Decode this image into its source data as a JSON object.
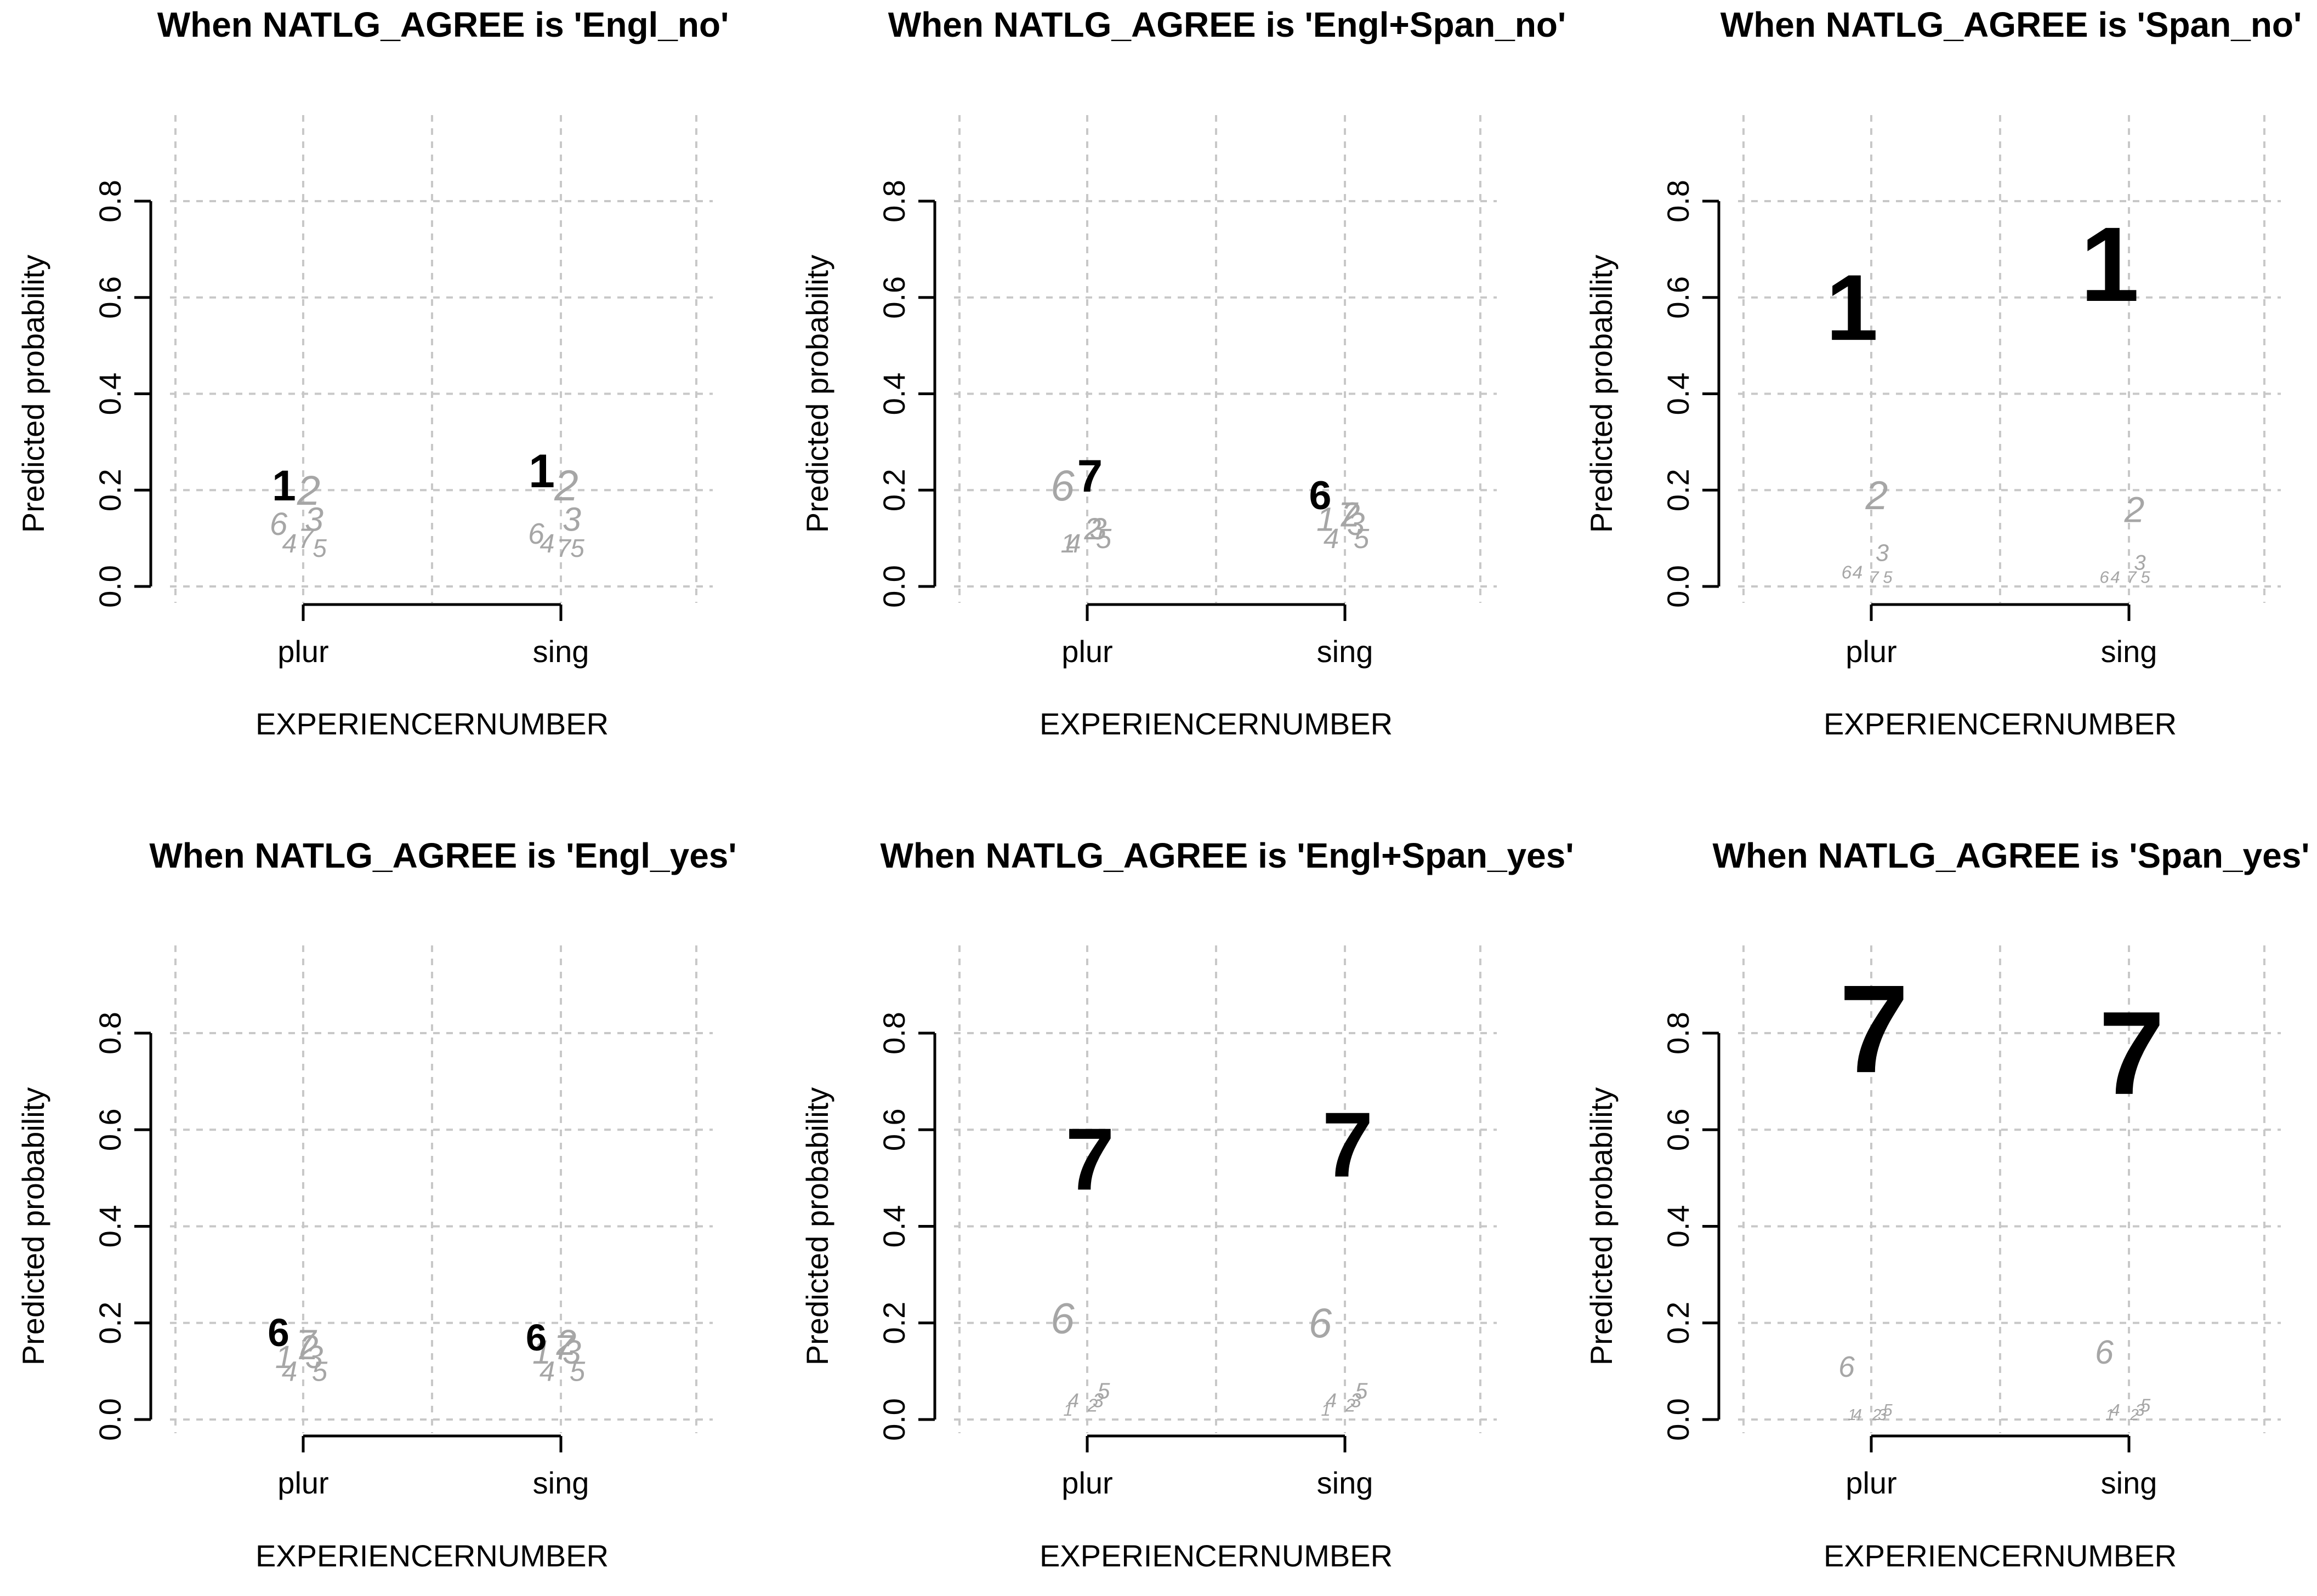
{
  "figure": {
    "panel_order": [
      "Engl_no",
      "Engl+Span_no",
      "Span_no",
      "Engl_yes",
      "Engl+Span_yes",
      "Span_yes"
    ],
    "highlight_color": "#000000",
    "muted_color": "#a6a6a6",
    "grid_color": "#c8c8c8"
  },
  "chart_data": [
    {
      "type": "scatter",
      "title": "When NATLG_AGREE is 'Engl_no'",
      "xlabel": "EXPERIENCERNUMBER",
      "ylabel": "Predicted probability",
      "categories": [
        "plur",
        "sing"
      ],
      "ylim": [
        0,
        0.8
      ],
      "yticks": [
        "0.0",
        "0.2",
        "0.4",
        "0.6",
        "0.8"
      ],
      "grid": true,
      "series": [
        {
          "name": "1",
          "values": [
            0.21,
            0.24
          ],
          "highlight": true
        },
        {
          "name": "2",
          "values": [
            0.2,
            0.21
          ]
        },
        {
          "name": "3",
          "values": [
            0.14,
            0.14
          ]
        },
        {
          "name": "4",
          "values": [
            0.09,
            0.09
          ]
        },
        {
          "name": "5",
          "values": [
            0.08,
            0.08
          ]
        },
        {
          "name": "6",
          "values": [
            0.13,
            0.11
          ]
        },
        {
          "name": "7",
          "values": [
            0.1,
            0.08
          ]
        }
      ]
    },
    {
      "type": "scatter",
      "title": "When NATLG_AGREE is 'Engl+Span_no'",
      "xlabel": "EXPERIENCERNUMBER",
      "ylabel": "Predicted probability",
      "categories": [
        "plur",
        "sing"
      ],
      "ylim": [
        0,
        0.8
      ],
      "yticks": [
        "0.0",
        "0.2",
        "0.4",
        "0.6",
        "0.8"
      ],
      "grid": true,
      "series": [
        {
          "name": "1",
          "values": [
            0.09,
            0.14
          ]
        },
        {
          "name": "2",
          "values": [
            0.12,
            0.15
          ]
        },
        {
          "name": "3",
          "values": [
            0.12,
            0.13
          ]
        },
        {
          "name": "4",
          "values": [
            0.09,
            0.1
          ]
        },
        {
          "name": "5",
          "values": [
            0.1,
            0.1
          ]
        },
        {
          "name": "6",
          "values": [
            0.21,
            0.19
          ],
          "highlight_sing": true
        },
        {
          "name": "7",
          "values": [
            0.23,
            0.15
          ],
          "highlight_plur": true
        }
      ]
    },
    {
      "type": "scatter",
      "title": "When NATLG_AGREE is 'Span_no'",
      "xlabel": "EXPERIENCERNUMBER",
      "ylabel": "Predicted probability",
      "categories": [
        "plur",
        "sing"
      ],
      "ylim": [
        0,
        0.8
      ],
      "yticks": [
        "0.0",
        "0.2",
        "0.4",
        "0.6",
        "0.8"
      ],
      "grid": true,
      "series": [
        {
          "name": "1",
          "values": [
            0.58,
            0.67
          ],
          "highlight": true
        },
        {
          "name": "2",
          "values": [
            0.19,
            0.16
          ]
        },
        {
          "name": "3",
          "values": [
            0.07,
            0.05
          ]
        },
        {
          "name": "4",
          "values": [
            0.03,
            0.02
          ]
        },
        {
          "name": "5",
          "values": [
            0.02,
            0.02
          ]
        },
        {
          "name": "6",
          "values": [
            0.03,
            0.02
          ]
        },
        {
          "name": "7",
          "values": [
            0.02,
            0.02
          ]
        }
      ]
    },
    {
      "type": "scatter",
      "title": "When NATLG_AGREE is 'Engl_yes'",
      "xlabel": "EXPERIENCERNUMBER",
      "ylabel": "Predicted probability",
      "categories": [
        "plur",
        "sing"
      ],
      "ylim": [
        0,
        0.8
      ],
      "yticks": [
        "0.0",
        "0.2",
        "0.4",
        "0.6",
        "0.8"
      ],
      "grid": true,
      "series": [
        {
          "name": "1",
          "values": [
            0.13,
            0.14
          ]
        },
        {
          "name": "2",
          "values": [
            0.15,
            0.16
          ]
        },
        {
          "name": "3",
          "values": [
            0.13,
            0.14
          ]
        },
        {
          "name": "4",
          "values": [
            0.1,
            0.1
          ]
        },
        {
          "name": "5",
          "values": [
            0.1,
            0.1
          ]
        },
        {
          "name": "6",
          "values": [
            0.18,
            0.17
          ],
          "highlight": true
        },
        {
          "name": "7",
          "values": [
            0.16,
            0.15
          ]
        }
      ]
    },
    {
      "type": "scatter",
      "title": "When NATLG_AGREE is 'Engl+Span_yes'",
      "xlabel": "EXPERIENCERNUMBER",
      "ylabel": "Predicted probability",
      "categories": [
        "plur",
        "sing"
      ],
      "ylim": [
        0,
        0.8
      ],
      "yticks": [
        "0.0",
        "0.2",
        "0.4",
        "0.6",
        "0.8"
      ],
      "grid": true,
      "series": [
        {
          "name": "1",
          "values": [
            0.02,
            0.02
          ]
        },
        {
          "name": "2",
          "values": [
            0.03,
            0.03
          ]
        },
        {
          "name": "3",
          "values": [
            0.04,
            0.04
          ]
        },
        {
          "name": "4",
          "values": [
            0.04,
            0.04
          ]
        },
        {
          "name": "5",
          "values": [
            0.06,
            0.06
          ]
        },
        {
          "name": "6",
          "values": [
            0.21,
            0.2
          ]
        },
        {
          "name": "7",
          "values": [
            0.54,
            0.57
          ],
          "highlight": true
        }
      ]
    },
    {
      "type": "scatter",
      "title": "When NATLG_AGREE is 'Span_yes'",
      "xlabel": "EXPERIENCERNUMBER",
      "ylabel": "Predicted probability",
      "categories": [
        "plur",
        "sing"
      ],
      "ylim": [
        0,
        0.8
      ],
      "yticks": [
        "0.0",
        "0.2",
        "0.4",
        "0.6",
        "0.8"
      ],
      "grid": true,
      "series": [
        {
          "name": "1",
          "values": [
            0.01,
            0.01
          ]
        },
        {
          "name": "2",
          "values": [
            0.01,
            0.01
          ]
        },
        {
          "name": "3",
          "values": [
            0.01,
            0.02
          ]
        },
        {
          "name": "4",
          "values": [
            0.01,
            0.02
          ]
        },
        {
          "name": "5",
          "values": [
            0.02,
            0.03
          ]
        },
        {
          "name": "6",
          "values": [
            0.11,
            0.14
          ]
        },
        {
          "name": "7",
          "values": [
            0.81,
            0.76
          ],
          "highlight": true
        }
      ]
    }
  ]
}
